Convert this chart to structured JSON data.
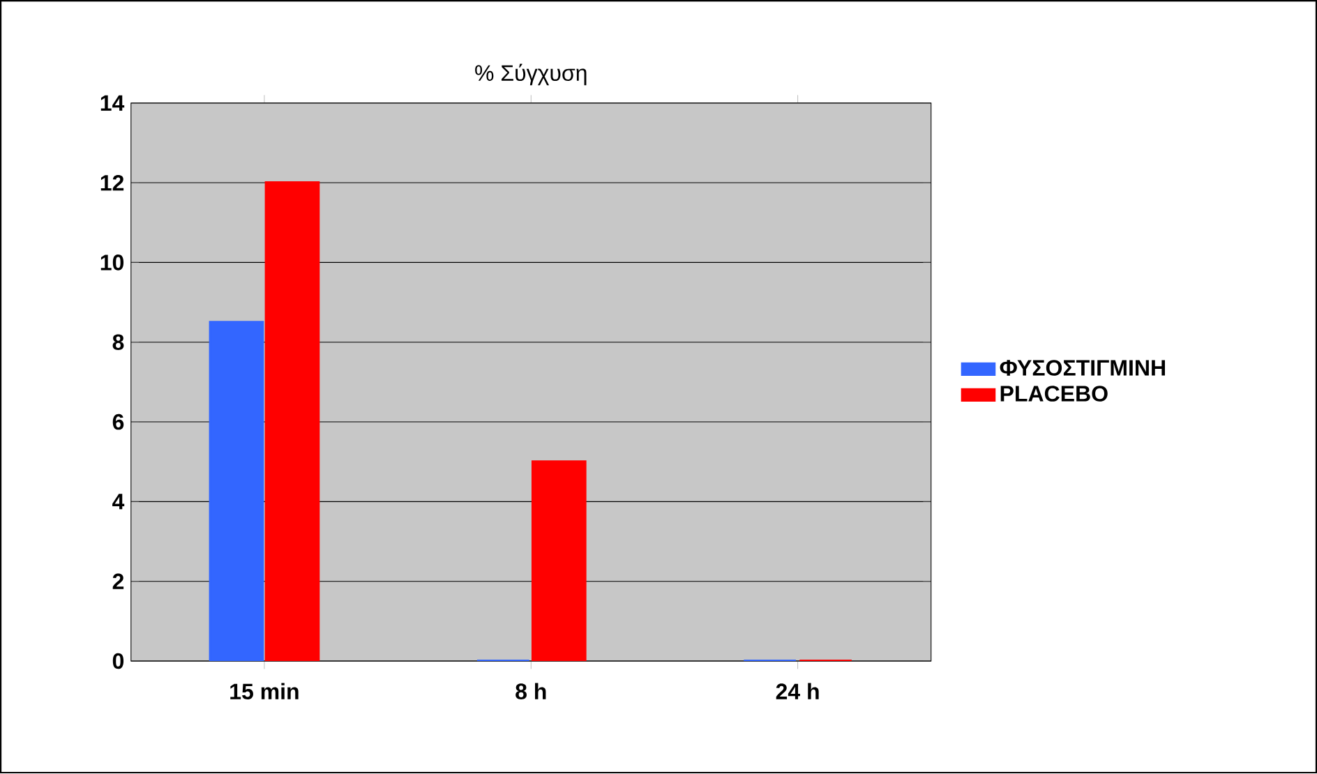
{
  "chart_data": {
    "type": "bar",
    "title": "% Σύγχυση",
    "categories": [
      "15 min",
      "8 h",
      "24 h"
    ],
    "series": [
      {
        "name": "ΦΥΣΟΣΤΙΓΜΙΝΗ",
        "color": "#3366ff",
        "values": [
          8.5,
          0,
          0
        ]
      },
      {
        "name": "PLACEBO",
        "color": "#ff0000",
        "values": [
          12,
          5,
          0
        ]
      }
    ],
    "ylim": [
      0,
      14
    ],
    "yticks": [
      0,
      2,
      4,
      6,
      8,
      10,
      12,
      14
    ],
    "grid": "y",
    "legend": "right"
  }
}
